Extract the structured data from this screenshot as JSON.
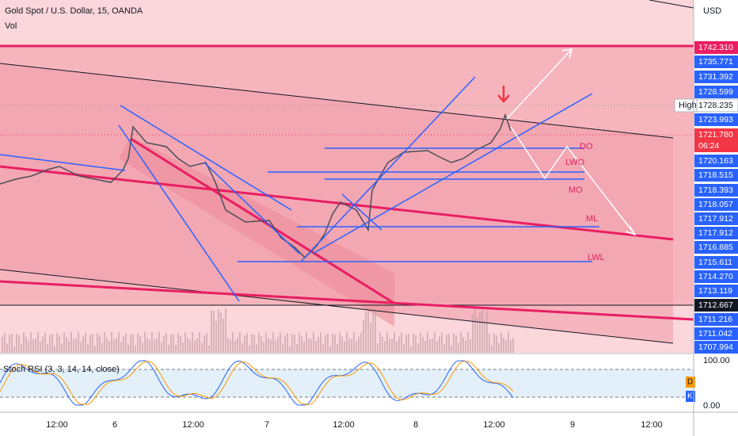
{
  "header": {
    "symbol": "Gold Spot / U.S. Dollar, 15, OANDA",
    "indicator": "Vol"
  },
  "price_scale": {
    "currency": "USD",
    "high_label": "High",
    "labels": [
      "1742.310",
      "1735.771",
      "1731.392",
      "1728.599",
      "1728.235",
      "1723.993",
      "1721.780",
      "06:24",
      "1720.163",
      "1718.515",
      "1718.393",
      "1718.057",
      "1717.912",
      "1717.912",
      "1716.885",
      "1715.611",
      "1714.270",
      "1713.119",
      "1712.667",
      "1711.216",
      "1711.042",
      "1707.994"
    ]
  },
  "annotations": [
    "DO",
    "LWO",
    "MO",
    "ML",
    "LWL"
  ],
  "oscillator": {
    "title": "Stoch RSI (3, 3, 14, 14, close)",
    "scale": [
      "100.00",
      "0.00"
    ],
    "legend": [
      "D",
      "K"
    ]
  },
  "time_axis": [
    "12:00",
    "6",
    "12:00",
    "7",
    "12:00",
    "8",
    "12:00",
    "9",
    "12:00"
  ]
}
